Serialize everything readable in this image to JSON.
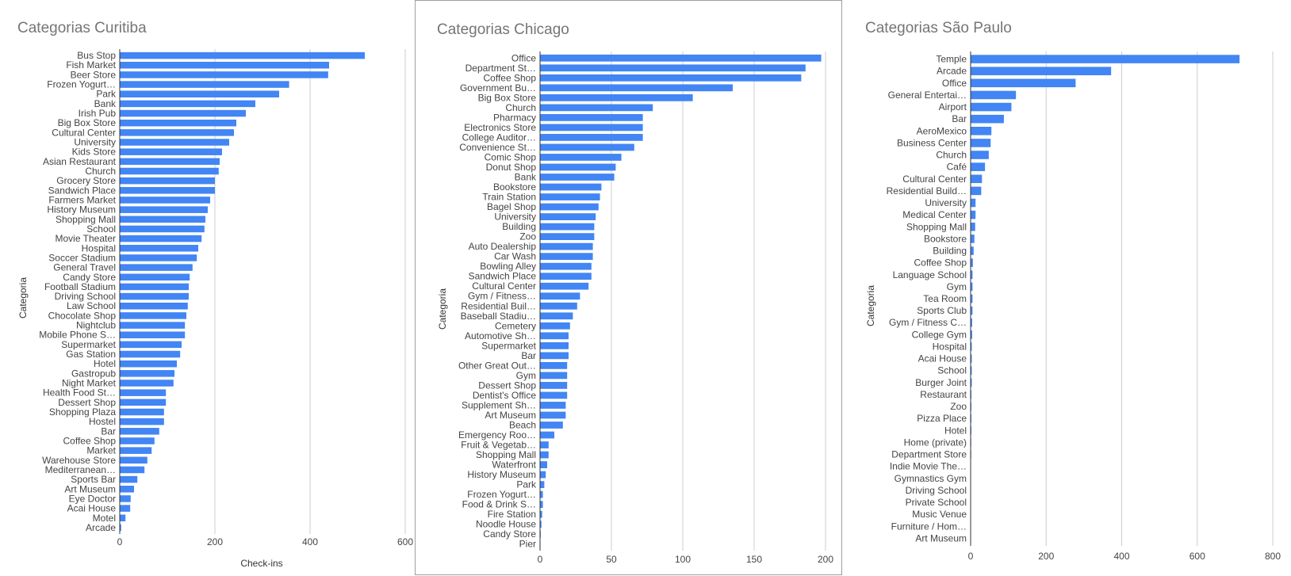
{
  "colors": {
    "bar": "#4285f4",
    "grid": "#cccccc",
    "axis": "#333333",
    "label": "#444444",
    "title": "#757575",
    "frame": "#9e9e9e"
  },
  "chart_data": [
    {
      "type": "bar",
      "orientation": "horizontal",
      "title": "Categorias Curitiba",
      "xlabel": "Check-ins",
      "ylabel": "Categoria",
      "xlim": [
        0,
        600
      ],
      "xticks": [
        0,
        200,
        400,
        600
      ],
      "grid": true,
      "legend": "none",
      "categories": [
        "Bus Stop",
        "Fish Market",
        "Beer Store",
        "Frozen Yogurt…",
        "Park",
        "Bank",
        "Irish Pub",
        "Big Box Store",
        "Cultural Center",
        "University",
        "Kids Store",
        "Asian Restaurant",
        "Church",
        "Grocery Store",
        "Sandwich Place",
        "Farmers Market",
        "History Museum",
        "Shopping Mall",
        "School",
        "Movie Theater",
        "Hospital",
        "Soccer Stadium",
        "General Travel",
        "Candy Store",
        "Football Stadium",
        "Driving School",
        "Law School",
        "Chocolate Shop",
        "Nightclub",
        "Mobile Phone S…",
        "Supermarket",
        "Gas Station",
        "Hotel",
        "Gastropub",
        "Night Market",
        "Health Food St…",
        "Dessert Shop",
        "Shopping Plaza",
        "Hostel",
        "Bar",
        "Coffee Shop",
        "Market",
        "Warehouse Store",
        "Mediterranean…",
        "Sports Bar",
        "Art Museum",
        "Eye Doctor",
        "Acai House",
        "Motel",
        "Arcade"
      ],
      "values": [
        515,
        440,
        438,
        356,
        335,
        285,
        265,
        245,
        240,
        230,
        215,
        210,
        208,
        200,
        200,
        190,
        185,
        180,
        178,
        172,
        165,
        162,
        153,
        147,
        145,
        145,
        143,
        140,
        137,
        137,
        130,
        127,
        120,
        115,
        113,
        97,
        97,
        93,
        93,
        83,
        73,
        67,
        58,
        52,
        37,
        30,
        23,
        22,
        12,
        3
      ]
    },
    {
      "type": "bar",
      "orientation": "horizontal",
      "title": "Categorias Chicago",
      "xlabel": "",
      "ylabel": "Categoria",
      "xlim": [
        0,
        200
      ],
      "xticks": [
        0,
        50,
        100,
        150,
        200
      ],
      "grid": true,
      "legend": "none",
      "categories": [
        "Office",
        "Department St…",
        "Coffee Shop",
        "Government Bu…",
        "Big Box Store",
        "Church",
        "Pharmacy",
        "Electronics Store",
        "College Auditor…",
        "Convenience St…",
        "Comic Shop",
        "Donut Shop",
        "Bank",
        "Bookstore",
        "Train Station",
        "Bagel Shop",
        "University",
        "Building",
        "Zoo",
        "Auto Dealership",
        "Car Wash",
        "Bowling Alley",
        "Sandwich Place",
        "Cultural Center",
        "Gym / Fitness…",
        "Residential Buil…",
        "Baseball Stadiu…",
        "Cemetery",
        "Automotive Sh…",
        "Supermarket",
        "Bar",
        "Other Great Out…",
        "Gym",
        "Dessert Shop",
        "Dentist's Office",
        "Supplement Sh…",
        "Art Museum",
        "Beach",
        "Emergency Roo…",
        "Fruit & Vegetab…",
        "Shopping Mall",
        "Waterfront",
        "History Museum",
        "Park",
        "Frozen Yogurt…",
        "Food & Drink S…",
        "Fire Station",
        "Noodle House",
        "Candy Store",
        "Pier"
      ],
      "values": [
        197,
        186,
        183,
        135,
        107,
        79,
        72,
        72,
        72,
        66,
        57,
        53,
        52,
        43,
        42,
        41,
        39,
        38,
        38,
        37,
        37,
        36,
        36,
        34,
        28,
        26,
        23,
        21,
        20,
        20,
        20,
        19,
        19,
        19,
        19,
        18,
        18,
        16,
        10,
        6,
        6,
        5,
        4,
        3,
        2,
        2,
        1.5,
        1,
        0.5,
        0.3
      ]
    },
    {
      "type": "bar",
      "orientation": "horizontal",
      "title": "Categorias São Paulo",
      "xlabel": "",
      "ylabel": "Categoria",
      "xlim": [
        0,
        800
      ],
      "xticks": [
        0,
        200,
        400,
        600,
        800
      ],
      "grid": true,
      "legend": "none",
      "categories": [
        "Temple",
        "Arcade",
        "Office",
        "General Entertai…",
        "Airport",
        "Bar",
        "AeroMexico",
        "Business Center",
        "Church",
        "Café",
        "Cultural Center",
        "Residential Build…",
        "University",
        "Medical Center",
        "Shopping Mall",
        "Bookstore",
        "Building",
        "Coffee Shop",
        "Language School",
        "Gym",
        "Tea Room",
        "Sports Club",
        "Gym / Fitness C…",
        "College Gym",
        "Hospital",
        "Acai House",
        "School",
        "Burger Joint",
        "Restaurant",
        "Zoo",
        "Pizza Place",
        "Hotel",
        "Home (private)",
        "Department Store",
        "Indie Movie The…",
        "Gymnastics Gym",
        "Driving School",
        "Private School",
        "Music Venue",
        "Furniture / Hom…",
        "Art Museum"
      ],
      "values": [
        712,
        372,
        278,
        120,
        108,
        88,
        55,
        53,
        48,
        38,
        30,
        28,
        13,
        13,
        12,
        10,
        8,
        6,
        5,
        5,
        5,
        5,
        4,
        4,
        3,
        3,
        3,
        3,
        2,
        2,
        2,
        2,
        1.5,
        1.5,
        1,
        1,
        1,
        0.5,
        0.5,
        0.5,
        0.5
      ]
    }
  ]
}
